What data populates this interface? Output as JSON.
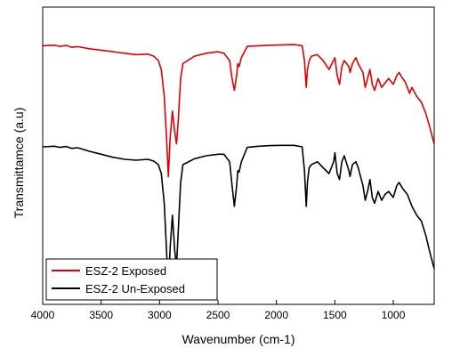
{
  "chart_data": {
    "type": "line",
    "title": "",
    "xlabel": "Wavenumber (cm-1)",
    "ylabel": "Transmittamce (a.u)",
    "xlim": [
      4000,
      650
    ],
    "x_reversed": true,
    "y_ticks_shown": false,
    "grid": false,
    "legend_position": "bottom-left",
    "x_ticks": [
      4000,
      3500,
      3000,
      2500,
      2000,
      1500,
      1000
    ],
    "colors": {
      "exposed": "#e00000",
      "unexposed": "#000000"
    },
    "series": [
      {
        "name": "ESZ-2 Exposed",
        "color": "#e00000",
        "points": [
          [
            4000,
            0.87
          ],
          [
            3900,
            0.872
          ],
          [
            3850,
            0.868
          ],
          [
            3800,
            0.871
          ],
          [
            3750,
            0.865
          ],
          [
            3700,
            0.867
          ],
          [
            3600,
            0.86
          ],
          [
            3500,
            0.855
          ],
          [
            3400,
            0.85
          ],
          [
            3300,
            0.845
          ],
          [
            3200,
            0.84
          ],
          [
            3100,
            0.842
          ],
          [
            3050,
            0.835
          ],
          [
            3010,
            0.82
          ],
          [
            2985,
            0.79
          ],
          [
            2960,
            0.7
          ],
          [
            2940,
            0.56
          ],
          [
            2925,
            0.43
          ],
          [
            2910,
            0.56
          ],
          [
            2890,
            0.65
          ],
          [
            2870,
            0.58
          ],
          [
            2855,
            0.54
          ],
          [
            2840,
            0.62
          ],
          [
            2820,
            0.76
          ],
          [
            2800,
            0.81
          ],
          [
            2700,
            0.835
          ],
          [
            2600,
            0.845
          ],
          [
            2500,
            0.85
          ],
          [
            2450,
            0.845
          ],
          [
            2400,
            0.82
          ],
          [
            2380,
            0.76
          ],
          [
            2360,
            0.72
          ],
          [
            2340,
            0.77
          ],
          [
            2330,
            0.81
          ],
          [
            2320,
            0.8
          ],
          [
            2300,
            0.83
          ],
          [
            2250,
            0.868
          ],
          [
            2150,
            0.87
          ],
          [
            2050,
            0.872
          ],
          [
            1950,
            0.873
          ],
          [
            1850,
            0.874
          ],
          [
            1780,
            0.87
          ],
          [
            1760,
            0.82
          ],
          [
            1745,
            0.73
          ],
          [
            1735,
            0.79
          ],
          [
            1720,
            0.82
          ],
          [
            1700,
            0.835
          ],
          [
            1650,
            0.84
          ],
          [
            1600,
            0.82
          ],
          [
            1550,
            0.79
          ],
          [
            1500,
            0.83
          ],
          [
            1480,
            0.77
          ],
          [
            1460,
            0.74
          ],
          [
            1440,
            0.8
          ],
          [
            1420,
            0.82
          ],
          [
            1380,
            0.8
          ],
          [
            1370,
            0.78
          ],
          [
            1350,
            0.81
          ],
          [
            1320,
            0.83
          ],
          [
            1300,
            0.81
          ],
          [
            1260,
            0.78
          ],
          [
            1240,
            0.73
          ],
          [
            1220,
            0.76
          ],
          [
            1200,
            0.79
          ],
          [
            1180,
            0.74
          ],
          [
            1160,
            0.72
          ],
          [
            1130,
            0.76
          ],
          [
            1100,
            0.73
          ],
          [
            1070,
            0.745
          ],
          [
            1040,
            0.76
          ],
          [
            1000,
            0.74
          ],
          [
            970,
            0.77
          ],
          [
            950,
            0.78
          ],
          [
            920,
            0.76
          ],
          [
            900,
            0.75
          ],
          [
            880,
            0.73
          ],
          [
            860,
            0.71
          ],
          [
            840,
            0.73
          ],
          [
            800,
            0.7
          ],
          [
            760,
            0.68
          ],
          [
            720,
            0.64
          ],
          [
            690,
            0.6
          ],
          [
            650,
            0.54
          ]
        ]
      },
      {
        "name": "ESZ-2 Un-Exposed",
        "color": "#000000",
        "points": [
          [
            4000,
            0.53
          ],
          [
            3900,
            0.532
          ],
          [
            3850,
            0.528
          ],
          [
            3800,
            0.531
          ],
          [
            3750,
            0.525
          ],
          [
            3700,
            0.527
          ],
          [
            3600,
            0.515
          ],
          [
            3500,
            0.505
          ],
          [
            3400,
            0.495
          ],
          [
            3300,
            0.488
          ],
          [
            3200,
            0.485
          ],
          [
            3100,
            0.488
          ],
          [
            3050,
            0.482
          ],
          [
            3010,
            0.47
          ],
          [
            2985,
            0.44
          ],
          [
            2960,
            0.34
          ],
          [
            2940,
            0.18
          ],
          [
            2925,
            0.05
          ],
          [
            2910,
            0.19
          ],
          [
            2890,
            0.3
          ],
          [
            2870,
            0.18
          ],
          [
            2855,
            0.13
          ],
          [
            2840,
            0.25
          ],
          [
            2820,
            0.41
          ],
          [
            2800,
            0.47
          ],
          [
            2700,
            0.49
          ],
          [
            2600,
            0.5
          ],
          [
            2500,
            0.505
          ],
          [
            2450,
            0.505
          ],
          [
            2400,
            0.48
          ],
          [
            2380,
            0.4
          ],
          [
            2360,
            0.33
          ],
          [
            2340,
            0.4
          ],
          [
            2330,
            0.45
          ],
          [
            2320,
            0.445
          ],
          [
            2300,
            0.48
          ],
          [
            2250,
            0.528
          ],
          [
            2150,
            0.532
          ],
          [
            2050,
            0.534
          ],
          [
            1950,
            0.535
          ],
          [
            1850,
            0.535
          ],
          [
            1780,
            0.53
          ],
          [
            1760,
            0.45
          ],
          [
            1745,
            0.33
          ],
          [
            1735,
            0.41
          ],
          [
            1720,
            0.46
          ],
          [
            1700,
            0.47
          ],
          [
            1650,
            0.48
          ],
          [
            1600,
            0.46
          ],
          [
            1550,
            0.44
          ],
          [
            1510,
            0.48
          ],
          [
            1500,
            0.51
          ],
          [
            1480,
            0.44
          ],
          [
            1460,
            0.42
          ],
          [
            1440,
            0.48
          ],
          [
            1420,
            0.5
          ],
          [
            1380,
            0.45
          ],
          [
            1370,
            0.43
          ],
          [
            1350,
            0.47
          ],
          [
            1320,
            0.48
          ],
          [
            1300,
            0.46
          ],
          [
            1260,
            0.4
          ],
          [
            1240,
            0.35
          ],
          [
            1220,
            0.38
          ],
          [
            1200,
            0.42
          ],
          [
            1180,
            0.36
          ],
          [
            1160,
            0.34
          ],
          [
            1130,
            0.38
          ],
          [
            1100,
            0.35
          ],
          [
            1070,
            0.37
          ],
          [
            1040,
            0.38
          ],
          [
            1000,
            0.36
          ],
          [
            970,
            0.4
          ],
          [
            950,
            0.41
          ],
          [
            920,
            0.39
          ],
          [
            900,
            0.38
          ],
          [
            880,
            0.37
          ],
          [
            860,
            0.35
          ],
          [
            840,
            0.33
          ],
          [
            800,
            0.3
          ],
          [
            760,
            0.28
          ],
          [
            720,
            0.23
          ],
          [
            690,
            0.18
          ],
          [
            650,
            0.12
          ]
        ]
      }
    ]
  }
}
